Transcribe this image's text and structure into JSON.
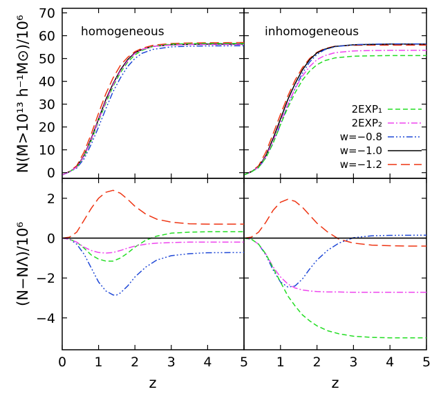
{
  "chart_data": {
    "type": "line",
    "shared_x_axis": {
      "label": "z",
      "lim": [
        0,
        5
      ],
      "ticks": [
        "0",
        "1",
        "2",
        "3",
        "4",
        "5"
      ]
    },
    "ylabel_top": "N(M>10¹³ h⁻¹M⊙)/10⁶",
    "ylabel_bottom": "(N−NΛ)/10⁶",
    "top_ylim": [
      -2.5,
      72
    ],
    "top_yticks": [
      "0",
      "10",
      "20",
      "30",
      "40",
      "50",
      "60",
      "70"
    ],
    "bottom_ylim": [
      -5.6,
      3.0
    ],
    "bottom_yticks": [
      "−4",
      "−2",
      "0",
      "2"
    ],
    "legend": {
      "placement": "right middle of the top-right panel",
      "entries": [
        {
          "key": "exp1",
          "label": "2EXP₁"
        },
        {
          "key": "exp2",
          "label": "2EXP₂"
        },
        {
          "key": "w08",
          "label": "w=−0.8"
        },
        {
          "key": "w10",
          "label": "w=−1.0"
        },
        {
          "key": "w12",
          "label": "w=−1.2"
        }
      ]
    },
    "styles": {
      "exp1": {
        "color": "#22dd22",
        "dash": "7 4"
      },
      "exp2": {
        "color": "#ee44ee",
        "dash": "9 3 2 3"
      },
      "w08": {
        "color": "#1f48d6",
        "dash": "9 3 2 3 2 3 2 3"
      },
      "w10": {
        "color": "#000000",
        "dash": ""
      },
      "w12": {
        "color": "#ee3311",
        "dash": "13 6"
      }
    },
    "panels": [
      {
        "id": "top-left",
        "label": "homogeneous",
        "zero_line": false,
        "series": [
          {
            "key": "w12",
            "x": [
              0,
              0.2,
              0.4,
              0.6,
              0.8,
              1.0,
              1.2,
              1.4,
              1.6,
              1.8,
              2.0,
              2.2,
              2.5,
              3.0,
              3.5,
              4.0,
              5.0
            ],
            "y": [
              -1,
              0.5,
              3,
              9,
              17,
              26,
              34.5,
              41.5,
              47,
              50.5,
              53,
              54.5,
              55.8,
              56.6,
              56.8,
              56.9,
              57
            ]
          },
          {
            "key": "w10",
            "x": [
              0,
              0.2,
              0.4,
              0.6,
              0.8,
              1.0,
              1.2,
              1.4,
              1.6,
              1.8,
              2.0,
              2.2,
              2.5,
              3.0,
              3.5,
              4.0,
              5.0
            ],
            "y": [
              -1,
              0.4,
              2.5,
              7.5,
              15,
              23.5,
              32,
              39,
              45,
              49.5,
              52.5,
              54,
              55.3,
              56,
              56.2,
              56.3,
              56.3
            ]
          },
          {
            "key": "w08",
            "x": [
              0,
              0.2,
              0.4,
              0.6,
              0.8,
              1.0,
              1.2,
              1.4,
              1.6,
              1.8,
              2.0,
              2.2,
              2.5,
              3.0,
              3.5,
              4.0,
              5.0
            ],
            "y": [
              -1,
              0.3,
              2,
              6,
              12.5,
              20,
              28,
              35.5,
              41.5,
              46.5,
              50,
              52.3,
              54,
              55.1,
              55.4,
              55.5,
              55.6
            ]
          },
          {
            "key": "exp1",
            "x": [
              0,
              0.2,
              0.4,
              0.6,
              0.8,
              1.0,
              1.2,
              1.4,
              1.6,
              1.8,
              2.0,
              2.2,
              2.5,
              3.0,
              3.5,
              4.0,
              5.0
            ],
            "y": [
              -1,
              0.4,
              2.3,
              7,
              14,
              22.5,
              30.5,
              37.8,
              43.8,
              48.4,
              51.6,
              53.6,
              55.3,
              56.3,
              56.5,
              56.6,
              56.6
            ]
          },
          {
            "key": "exp2",
            "x": [
              0,
              0.2,
              0.4,
              0.6,
              0.8,
              1.0,
              1.2,
              1.4,
              1.6,
              1.8,
              2.0,
              2.2,
              2.5,
              3.0,
              3.5,
              4.0,
              5.0
            ],
            "y": [
              -1,
              0.4,
              2.4,
              7.2,
              14.5,
              23,
              31.3,
              38.5,
              44.5,
              49,
              52.2,
              54,
              55.3,
              55.9,
              56.1,
              56.1,
              56.1
            ]
          }
        ]
      },
      {
        "id": "top-right",
        "label": "inhomogeneous",
        "zero_line": false,
        "series": [
          {
            "key": "w12",
            "x": [
              0,
              0.2,
              0.4,
              0.6,
              0.8,
              1.0,
              1.2,
              1.4,
              1.6,
              1.8,
              2.0,
              2.2,
              2.5,
              3.0,
              3.5,
              4.0,
              5.0
            ],
            "y": [
              -1,
              0.5,
              3,
              9,
              17,
              25.5,
              33.5,
              40.5,
              46,
              50,
              52.7,
              54.3,
              55.4,
              55.8,
              55.9,
              55.9,
              55.9
            ]
          },
          {
            "key": "w10",
            "x": [
              0,
              0.2,
              0.4,
              0.6,
              0.8,
              1.0,
              1.2,
              1.4,
              1.6,
              1.8,
              2.0,
              2.2,
              2.5,
              3.0,
              3.5,
              4.0,
              5.0
            ],
            "y": [
              -1,
              0.4,
              2.5,
              7.5,
              15,
              23.5,
              32,
              39,
              45,
              49.5,
              52.5,
              54,
              55.3,
              56,
              56.2,
              56.3,
              56.3
            ]
          },
          {
            "key": "w08",
            "x": [
              0,
              0.2,
              0.4,
              0.6,
              0.8,
              1.0,
              1.2,
              1.4,
              1.6,
              1.8,
              2.0,
              2.2,
              2.5,
              3.0,
              3.5,
              4.0,
              5.0
            ],
            "y": [
              -1,
              0.3,
              2.2,
              6.5,
              13,
              21,
              29.5,
              37,
              43.5,
              48.5,
              51.8,
              53.8,
              55.2,
              56,
              56.3,
              56.4,
              56.4
            ]
          },
          {
            "key": "exp2",
            "x": [
              0,
              0.2,
              0.4,
              0.6,
              0.8,
              1.0,
              1.2,
              1.4,
              1.6,
              1.8,
              2.0,
              2.2,
              2.5,
              3.0,
              3.5,
              4.0,
              5.0
            ],
            "y": [
              -1,
              0.4,
              2.4,
              7,
              14,
              22,
              30,
              36.8,
              42.3,
              46.5,
              49.5,
              51.2,
              52.6,
              53.3,
              53.5,
              53.6,
              53.6
            ]
          },
          {
            "key": "exp1",
            "x": [
              0,
              0.2,
              0.4,
              0.6,
              0.8,
              1.0,
              1.2,
              1.4,
              1.6,
              1.8,
              2.0,
              2.2,
              2.5,
              3.0,
              3.5,
              4.0,
              5.0
            ],
            "y": [
              -1,
              0.3,
              2.3,
              6.5,
              13,
              21,
              28.5,
              35,
              40.5,
              44.5,
              47.3,
              49,
              50.3,
              51,
              51.2,
              51.3,
              51.3
            ]
          }
        ]
      },
      {
        "id": "bottom-left",
        "label": "",
        "zero_line": true,
        "series": [
          {
            "key": "w12",
            "x": [
              0,
              0.2,
              0.4,
              0.6,
              0.8,
              1.0,
              1.2,
              1.4,
              1.6,
              1.8,
              2.0,
              2.3,
              2.6,
              3.0,
              3.5,
              4.0,
              4.5,
              5.0
            ],
            "y": [
              0,
              0.05,
              0.3,
              0.9,
              1.5,
              2.0,
              2.3,
              2.4,
              2.25,
              1.95,
              1.6,
              1.2,
              0.95,
              0.8,
              0.72,
              0.7,
              0.7,
              0.7
            ]
          },
          {
            "key": "w08",
            "x": [
              0,
              0.2,
              0.4,
              0.6,
              0.8,
              1.0,
              1.2,
              1.4,
              1.5,
              1.6,
              1.8,
              2.0,
              2.3,
              2.6,
              3.0,
              3.5,
              4.0,
              5.0
            ],
            "y": [
              0,
              -0.05,
              -0.3,
              -0.8,
              -1.5,
              -2.2,
              -2.65,
              -2.85,
              -2.85,
              -2.75,
              -2.4,
              -1.95,
              -1.45,
              -1.1,
              -0.88,
              -0.78,
              -0.73,
              -0.72
            ]
          },
          {
            "key": "exp1",
            "x": [
              0,
              0.2,
              0.4,
              0.6,
              0.8,
              1.0,
              1.2,
              1.4,
              1.6,
              1.8,
              2.0,
              2.3,
              2.6,
              3.0,
              3.5,
              4.0,
              5.0
            ],
            "y": [
              0,
              -0.05,
              -0.2,
              -0.5,
              -0.85,
              -1.05,
              -1.15,
              -1.15,
              -1.0,
              -0.75,
              -0.45,
              -0.1,
              0.1,
              0.25,
              0.3,
              0.32,
              0.32
            ]
          },
          {
            "key": "exp2",
            "x": [
              0,
              0.2,
              0.4,
              0.6,
              0.8,
              1.0,
              1.2,
              1.4,
              1.6,
              1.8,
              2.0,
              2.3,
              2.6,
              3.0,
              3.5,
              4.0,
              5.0
            ],
            "y": [
              0,
              -0.05,
              -0.2,
              -0.45,
              -0.62,
              -0.72,
              -0.75,
              -0.72,
              -0.62,
              -0.5,
              -0.4,
              -0.3,
              -0.25,
              -0.22,
              -0.2,
              -0.2,
              -0.2
            ]
          },
          {
            "key": "w10",
            "x": [
              0,
              5
            ],
            "y": [
              0,
              0
            ]
          }
        ]
      },
      {
        "id": "bottom-right",
        "label": "",
        "zero_line": true,
        "series": [
          {
            "key": "w12",
            "x": [
              0,
              0.2,
              0.4,
              0.6,
              0.8,
              1.0,
              1.2,
              1.4,
              1.6,
              1.8,
              2.0,
              2.3,
              2.6,
              3.0,
              3.5,
              4.0,
              4.5,
              5.0
            ],
            "y": [
              0,
              0.05,
              0.3,
              0.8,
              1.4,
              1.8,
              1.95,
              1.85,
              1.55,
              1.15,
              0.75,
              0.3,
              -0.05,
              -0.25,
              -0.35,
              -0.38,
              -0.4,
              -0.4
            ]
          },
          {
            "key": "w08",
            "x": [
              0,
              0.2,
              0.4,
              0.6,
              0.8,
              1.0,
              1.2,
              1.4,
              1.6,
              1.8,
              2.0,
              2.3,
              2.6,
              3.0,
              3.5,
              4.0,
              5.0
            ],
            "y": [
              0,
              -0.05,
              -0.3,
              -0.85,
              -1.6,
              -2.2,
              -2.45,
              -2.4,
              -2.05,
              -1.55,
              -1.1,
              -0.6,
              -0.25,
              0.02,
              0.12,
              0.14,
              0.15
            ]
          },
          {
            "key": "exp2",
            "x": [
              0,
              0.2,
              0.4,
              0.6,
              0.8,
              1.0,
              1.2,
              1.4,
              1.6,
              1.8,
              2.0,
              2.3,
              2.6,
              3.0,
              3.5,
              4.0,
              5.0
            ],
            "y": [
              0,
              -0.05,
              -0.3,
              -0.8,
              -1.45,
              -1.95,
              -2.3,
              -2.5,
              -2.6,
              -2.65,
              -2.68,
              -2.7,
              -2.7,
              -2.72,
              -2.72,
              -2.72,
              -2.72
            ]
          },
          {
            "key": "exp1",
            "x": [
              0,
              0.2,
              0.4,
              0.6,
              0.8,
              1.0,
              1.2,
              1.4,
              1.6,
              1.8,
              2.0,
              2.3,
              2.6,
              3.0,
              3.5,
              4.0,
              5.0
            ],
            "y": [
              0,
              -0.05,
              -0.3,
              -0.8,
              -1.5,
              -2.2,
              -2.9,
              -3.4,
              -3.85,
              -4.15,
              -4.4,
              -4.65,
              -4.8,
              -4.92,
              -4.98,
              -5.0,
              -5.0
            ]
          },
          {
            "key": "w10",
            "x": [
              0,
              5
            ],
            "y": [
              0,
              0
            ]
          }
        ]
      }
    ]
  }
}
